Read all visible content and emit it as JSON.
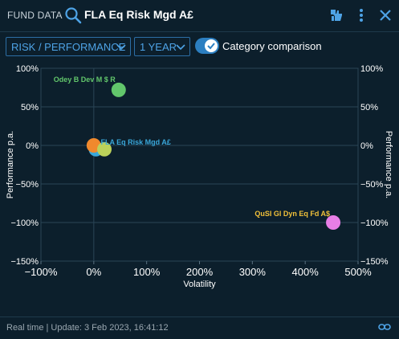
{
  "header": {
    "section_label": "FUND DATA",
    "fund_name": "FLA Eq Risk Mgd A£",
    "icons": [
      "search-icon",
      "thumbs-icon",
      "more-vertical-icon",
      "close-icon"
    ]
  },
  "toolbar": {
    "view_select": "RISK / PERFORMANCE",
    "period_select": "1 YEAR",
    "category_toggle_label": "Category comparison",
    "category_toggle_on": true
  },
  "chart_data": {
    "type": "scatter",
    "xlabel": "Volatility",
    "ylabel_left": "Performance p.a.",
    "ylabel_right": "Performance p.a.",
    "xlim": [
      -100,
      500
    ],
    "ylim": [
      -150,
      100
    ],
    "xticks": [
      "−100%",
      "0%",
      "100%",
      "200%",
      "300%",
      "400%",
      "500%"
    ],
    "yticks": [
      "100%",
      "50%",
      "0%",
      "−50%",
      "−100%",
      "−150%"
    ],
    "points": [
      {
        "name": "Odey B Dev M $ R",
        "x": 47,
        "y": 72,
        "color": "#62c66b",
        "label_color": "#62c66b",
        "show_label": true
      },
      {
        "name": "FLA Eq Risk Mgd A£",
        "x": 4,
        "y": -5,
        "color": "#3aa7d9",
        "label_color": "#3aa7d9",
        "show_label": true
      },
      {
        "name": "",
        "x": 0,
        "y": 0,
        "color": "#f0892d",
        "label_color": "",
        "show_label": false
      },
      {
        "name": "",
        "x": 20,
        "y": -5,
        "color": "#bcd15a",
        "label_color": "",
        "show_label": false
      },
      {
        "name": "QuSI Gl Dyn Eq Fd A$",
        "x": 453,
        "y": -100,
        "color": "#e77ee6",
        "label_color": "#f0c03a",
        "show_label": true
      }
    ]
  },
  "footer": {
    "status": "Real time | Update: 3 Feb 2023, 16:41:12",
    "link_icon": "link-icon"
  }
}
